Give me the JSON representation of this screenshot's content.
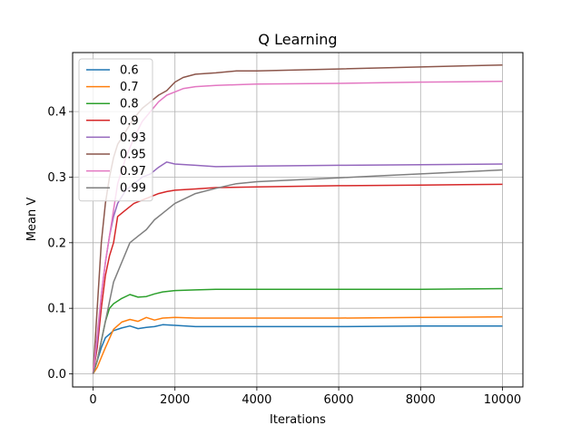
{
  "chart_data": {
    "type": "line",
    "title": "Q Learning",
    "xlabel": "Iterations",
    "ylabel": "Mean V",
    "xlim": [
      -500,
      10500
    ],
    "ylim": [
      -0.02,
      0.49
    ],
    "xticks": [
      0,
      2000,
      4000,
      6000,
      8000,
      10000
    ],
    "xtick_labels": [
      "0",
      "2000",
      "4000",
      "6000",
      "8000",
      "10000"
    ],
    "yticks": [
      0.0,
      0.1,
      0.2,
      0.3,
      0.4
    ],
    "ytick_labels": [
      "0.0",
      "0.1",
      "0.2",
      "0.3",
      "0.4"
    ],
    "grid": true,
    "legend_position": "top-left",
    "series": [
      {
        "name": "0.6",
        "color": "#1f77b4",
        "x": [
          0,
          100,
          200,
          300,
          500,
          700,
          900,
          1100,
          1300,
          1500,
          1700,
          2000,
          2500,
          3000,
          4000,
          6000,
          8000,
          10000
        ],
        "y": [
          0.0,
          0.02,
          0.04,
          0.055,
          0.066,
          0.07,
          0.073,
          0.069,
          0.071,
          0.072,
          0.075,
          0.074,
          0.072,
          0.072,
          0.072,
          0.072,
          0.073,
          0.073
        ]
      },
      {
        "name": "0.7",
        "color": "#ff7f0e",
        "x": [
          0,
          100,
          200,
          300,
          500,
          700,
          900,
          1100,
          1300,
          1500,
          1700,
          2000,
          2500,
          3000,
          4000,
          6000,
          8000,
          10000
        ],
        "y": [
          0.0,
          0.01,
          0.025,
          0.04,
          0.068,
          0.079,
          0.083,
          0.08,
          0.086,
          0.082,
          0.085,
          0.086,
          0.085,
          0.085,
          0.085,
          0.085,
          0.086,
          0.087
        ]
      },
      {
        "name": "0.8",
        "color": "#2ca02c",
        "x": [
          0,
          100,
          200,
          300,
          400,
          500,
          700,
          900,
          1100,
          1300,
          1500,
          1700,
          2000,
          2500,
          3000,
          4000,
          6000,
          8000,
          10000
        ],
        "y": [
          0.0,
          0.02,
          0.05,
          0.08,
          0.1,
          0.107,
          0.115,
          0.121,
          0.117,
          0.118,
          0.122,
          0.125,
          0.127,
          0.128,
          0.129,
          0.129,
          0.129,
          0.129,
          0.13
        ]
      },
      {
        "name": "0.9",
        "color": "#d62728",
        "x": [
          0,
          100,
          200,
          300,
          400,
          500,
          600,
          800,
          1000,
          1200,
          1400,
          1600,
          1800,
          2000,
          2500,
          3000,
          4000,
          6000,
          8000,
          10000
        ],
        "y": [
          0.0,
          0.04,
          0.1,
          0.15,
          0.18,
          0.2,
          0.24,
          0.25,
          0.26,
          0.265,
          0.27,
          0.275,
          0.278,
          0.28,
          0.282,
          0.284,
          0.285,
          0.287,
          0.288,
          0.289
        ]
      },
      {
        "name": "0.93",
        "color": "#9467bd",
        "x": [
          0,
          100,
          200,
          300,
          400,
          500,
          600,
          800,
          1000,
          1200,
          1400,
          1600,
          1800,
          2000,
          2500,
          3000,
          4000,
          6000,
          8000,
          10000
        ],
        "y": [
          0.0,
          0.05,
          0.12,
          0.17,
          0.21,
          0.24,
          0.26,
          0.28,
          0.29,
          0.3,
          0.305,
          0.315,
          0.323,
          0.32,
          0.318,
          0.316,
          0.317,
          0.318,
          0.319,
          0.32
        ]
      },
      {
        "name": "0.95",
        "color": "#8c564b",
        "x": [
          0,
          100,
          200,
          300,
          400,
          500,
          600,
          800,
          1000,
          1200,
          1400,
          1600,
          1800,
          2000,
          2200,
          2500,
          3000,
          3500,
          4000,
          6000,
          8000,
          10000
        ],
        "y": [
          0.0,
          0.1,
          0.2,
          0.26,
          0.3,
          0.33,
          0.35,
          0.37,
          0.39,
          0.405,
          0.415,
          0.425,
          0.432,
          0.445,
          0.452,
          0.457,
          0.459,
          0.462,
          0.462,
          0.465,
          0.468,
          0.471
        ]
      },
      {
        "name": "0.97",
        "color": "#e377c2",
        "x": [
          0,
          100,
          200,
          300,
          400,
          500,
          600,
          800,
          1000,
          1200,
          1400,
          1600,
          1800,
          2000,
          2200,
          2500,
          3000,
          3500,
          4000,
          6000,
          8000,
          10000
        ],
        "y": [
          0.0,
          0.06,
          0.12,
          0.17,
          0.21,
          0.25,
          0.29,
          0.33,
          0.36,
          0.385,
          0.4,
          0.415,
          0.425,
          0.43,
          0.435,
          0.438,
          0.44,
          0.441,
          0.442,
          0.443,
          0.445,
          0.446
        ]
      },
      {
        "name": "0.99",
        "color": "#7f7f7f",
        "x": [
          0,
          100,
          200,
          300,
          400,
          500,
          700,
          900,
          1100,
          1300,
          1500,
          1700,
          2000,
          2500,
          3000,
          3500,
          4000,
          5000,
          6000,
          7000,
          8000,
          9000,
          10000
        ],
        "y": [
          0.0,
          0.02,
          0.05,
          0.08,
          0.11,
          0.14,
          0.17,
          0.2,
          0.21,
          0.22,
          0.235,
          0.245,
          0.26,
          0.275,
          0.283,
          0.29,
          0.293,
          0.296,
          0.299,
          0.302,
          0.305,
          0.308,
          0.311
        ]
      }
    ]
  }
}
